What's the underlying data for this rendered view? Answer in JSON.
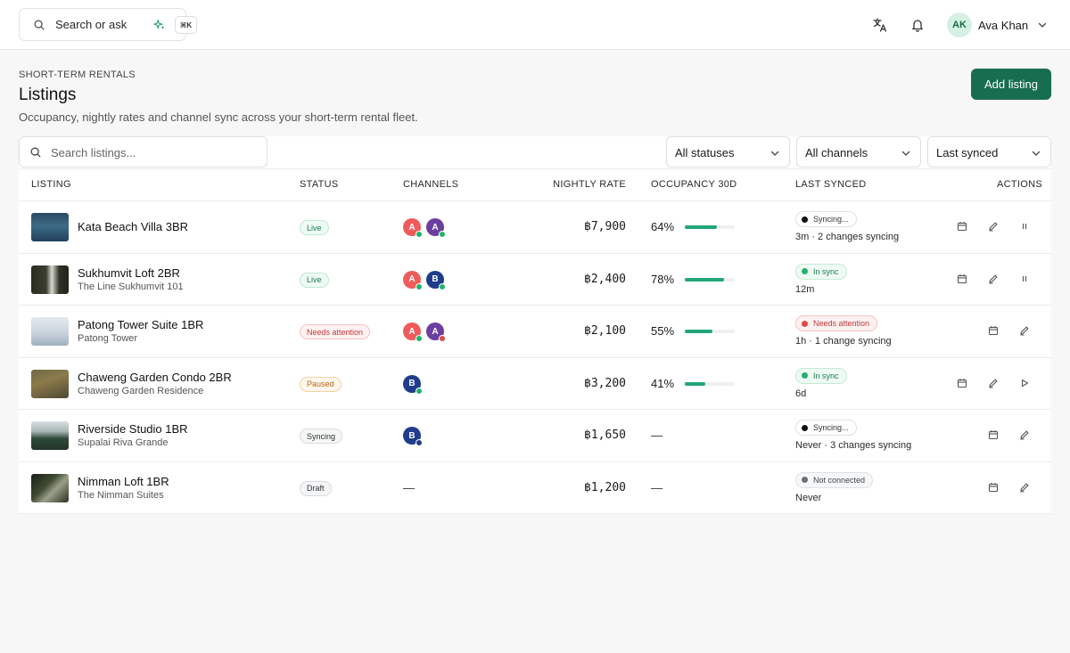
{
  "topbar": {
    "search_label": "Search or ask",
    "shortcut": "⌘K",
    "icons": [
      "translate-icon",
      "bell-icon"
    ],
    "user": {
      "initials": "AK",
      "name": "Ava Khan"
    }
  },
  "header": {
    "eyebrow": "SHORT-TERM RENTALS",
    "title": "Listings",
    "subtitle": "Occupancy, nightly rates and channel sync across your short-term rental fleet.",
    "add_button": "Add listing"
  },
  "filters": {
    "search_placeholder": "Search listings...",
    "status": "All statuses",
    "channel": "All channels",
    "sort": "Last synced"
  },
  "columns": {
    "listing": "LISTING",
    "status": "STATUS",
    "channels": "CHANNELS",
    "rate": "NIGHTLY RATE",
    "occupancy": "OCCUPANCY 30D",
    "synced": "LAST SYNCED",
    "actions": "ACTIONS"
  },
  "colors": {
    "accent": "#176d4f",
    "occupancy_bar": "#22a57a",
    "channel_a_red": "#ef5b5b",
    "channel_a_purple": "#6b3fa0",
    "channel_b_blue": "#1f3d8a"
  },
  "rows": [
    {
      "name": "Kata Beach Villa 3BR",
      "subtitle": "",
      "status": "Live",
      "channels": [
        {
          "letter": "A",
          "color": "red",
          "dot": "green"
        },
        {
          "letter": "A",
          "color": "purple",
          "dot": "green"
        }
      ],
      "rate": "฿7,900",
      "occupancy": "64%",
      "occupancy_fraction": 0.64,
      "sync_badge": "Syncing...",
      "sync_text": "3m · 2 changes syncing",
      "actions": [
        "calendar-icon",
        "edit-icon",
        "pause-icon"
      ]
    },
    {
      "name": "Sukhumvit Loft 2BR",
      "subtitle": "The Line Sukhumvit 101",
      "status": "Live",
      "channels": [
        {
          "letter": "A",
          "color": "red",
          "dot": "green"
        },
        {
          "letter": "B",
          "color": "blue",
          "dot": "green"
        }
      ],
      "rate": "฿2,400",
      "occupancy": "78%",
      "occupancy_fraction": 0.78,
      "sync_badge": "In sync",
      "sync_text": "12m",
      "actions": [
        "calendar-icon",
        "edit-icon",
        "pause-icon"
      ]
    },
    {
      "name": "Patong Tower Suite 1BR",
      "subtitle": "Patong Tower",
      "status": "Needs attention",
      "channels": [
        {
          "letter": "A",
          "color": "red",
          "dot": "green"
        },
        {
          "letter": "A",
          "color": "purple",
          "dot": "red"
        }
      ],
      "rate": "฿2,100",
      "occupancy": "55%",
      "occupancy_fraction": 0.55,
      "sync_badge": "Needs attention",
      "sync_text": "1h · 1 change syncing",
      "actions": [
        "calendar-icon",
        "edit-icon"
      ]
    },
    {
      "name": "Chaweng Garden Condo 2BR",
      "subtitle": "Chaweng Garden Residence",
      "status": "Paused",
      "channels": [
        {
          "letter": "B",
          "color": "blue",
          "dot": "green"
        }
      ],
      "rate": "฿3,200",
      "occupancy": "41%",
      "occupancy_fraction": 0.41,
      "sync_badge": "In sync",
      "sync_text": "6d",
      "actions": [
        "calendar-icon",
        "edit-icon",
        "play-icon"
      ]
    },
    {
      "name": "Riverside Studio 1BR",
      "subtitle": "Supalai Riva Grande",
      "status": "Syncing",
      "channels": [
        {
          "letter": "B",
          "color": "blue",
          "dot": "blue"
        }
      ],
      "rate": "฿1,650",
      "occupancy": "—",
      "occupancy_fraction": null,
      "sync_badge": "Syncing...",
      "sync_text": "Never · 3 changes syncing",
      "actions": [
        "calendar-icon",
        "edit-icon"
      ]
    },
    {
      "name": "Nimman Loft 1BR",
      "subtitle": "The Nimman Suites",
      "status": "Draft",
      "channels_empty": "—",
      "rate": "฿1,200",
      "occupancy": "—",
      "occupancy_fraction": null,
      "sync_badge": "Not connected",
      "sync_text": "Never",
      "actions": [
        "calendar-icon",
        "edit-icon"
      ]
    }
  ]
}
